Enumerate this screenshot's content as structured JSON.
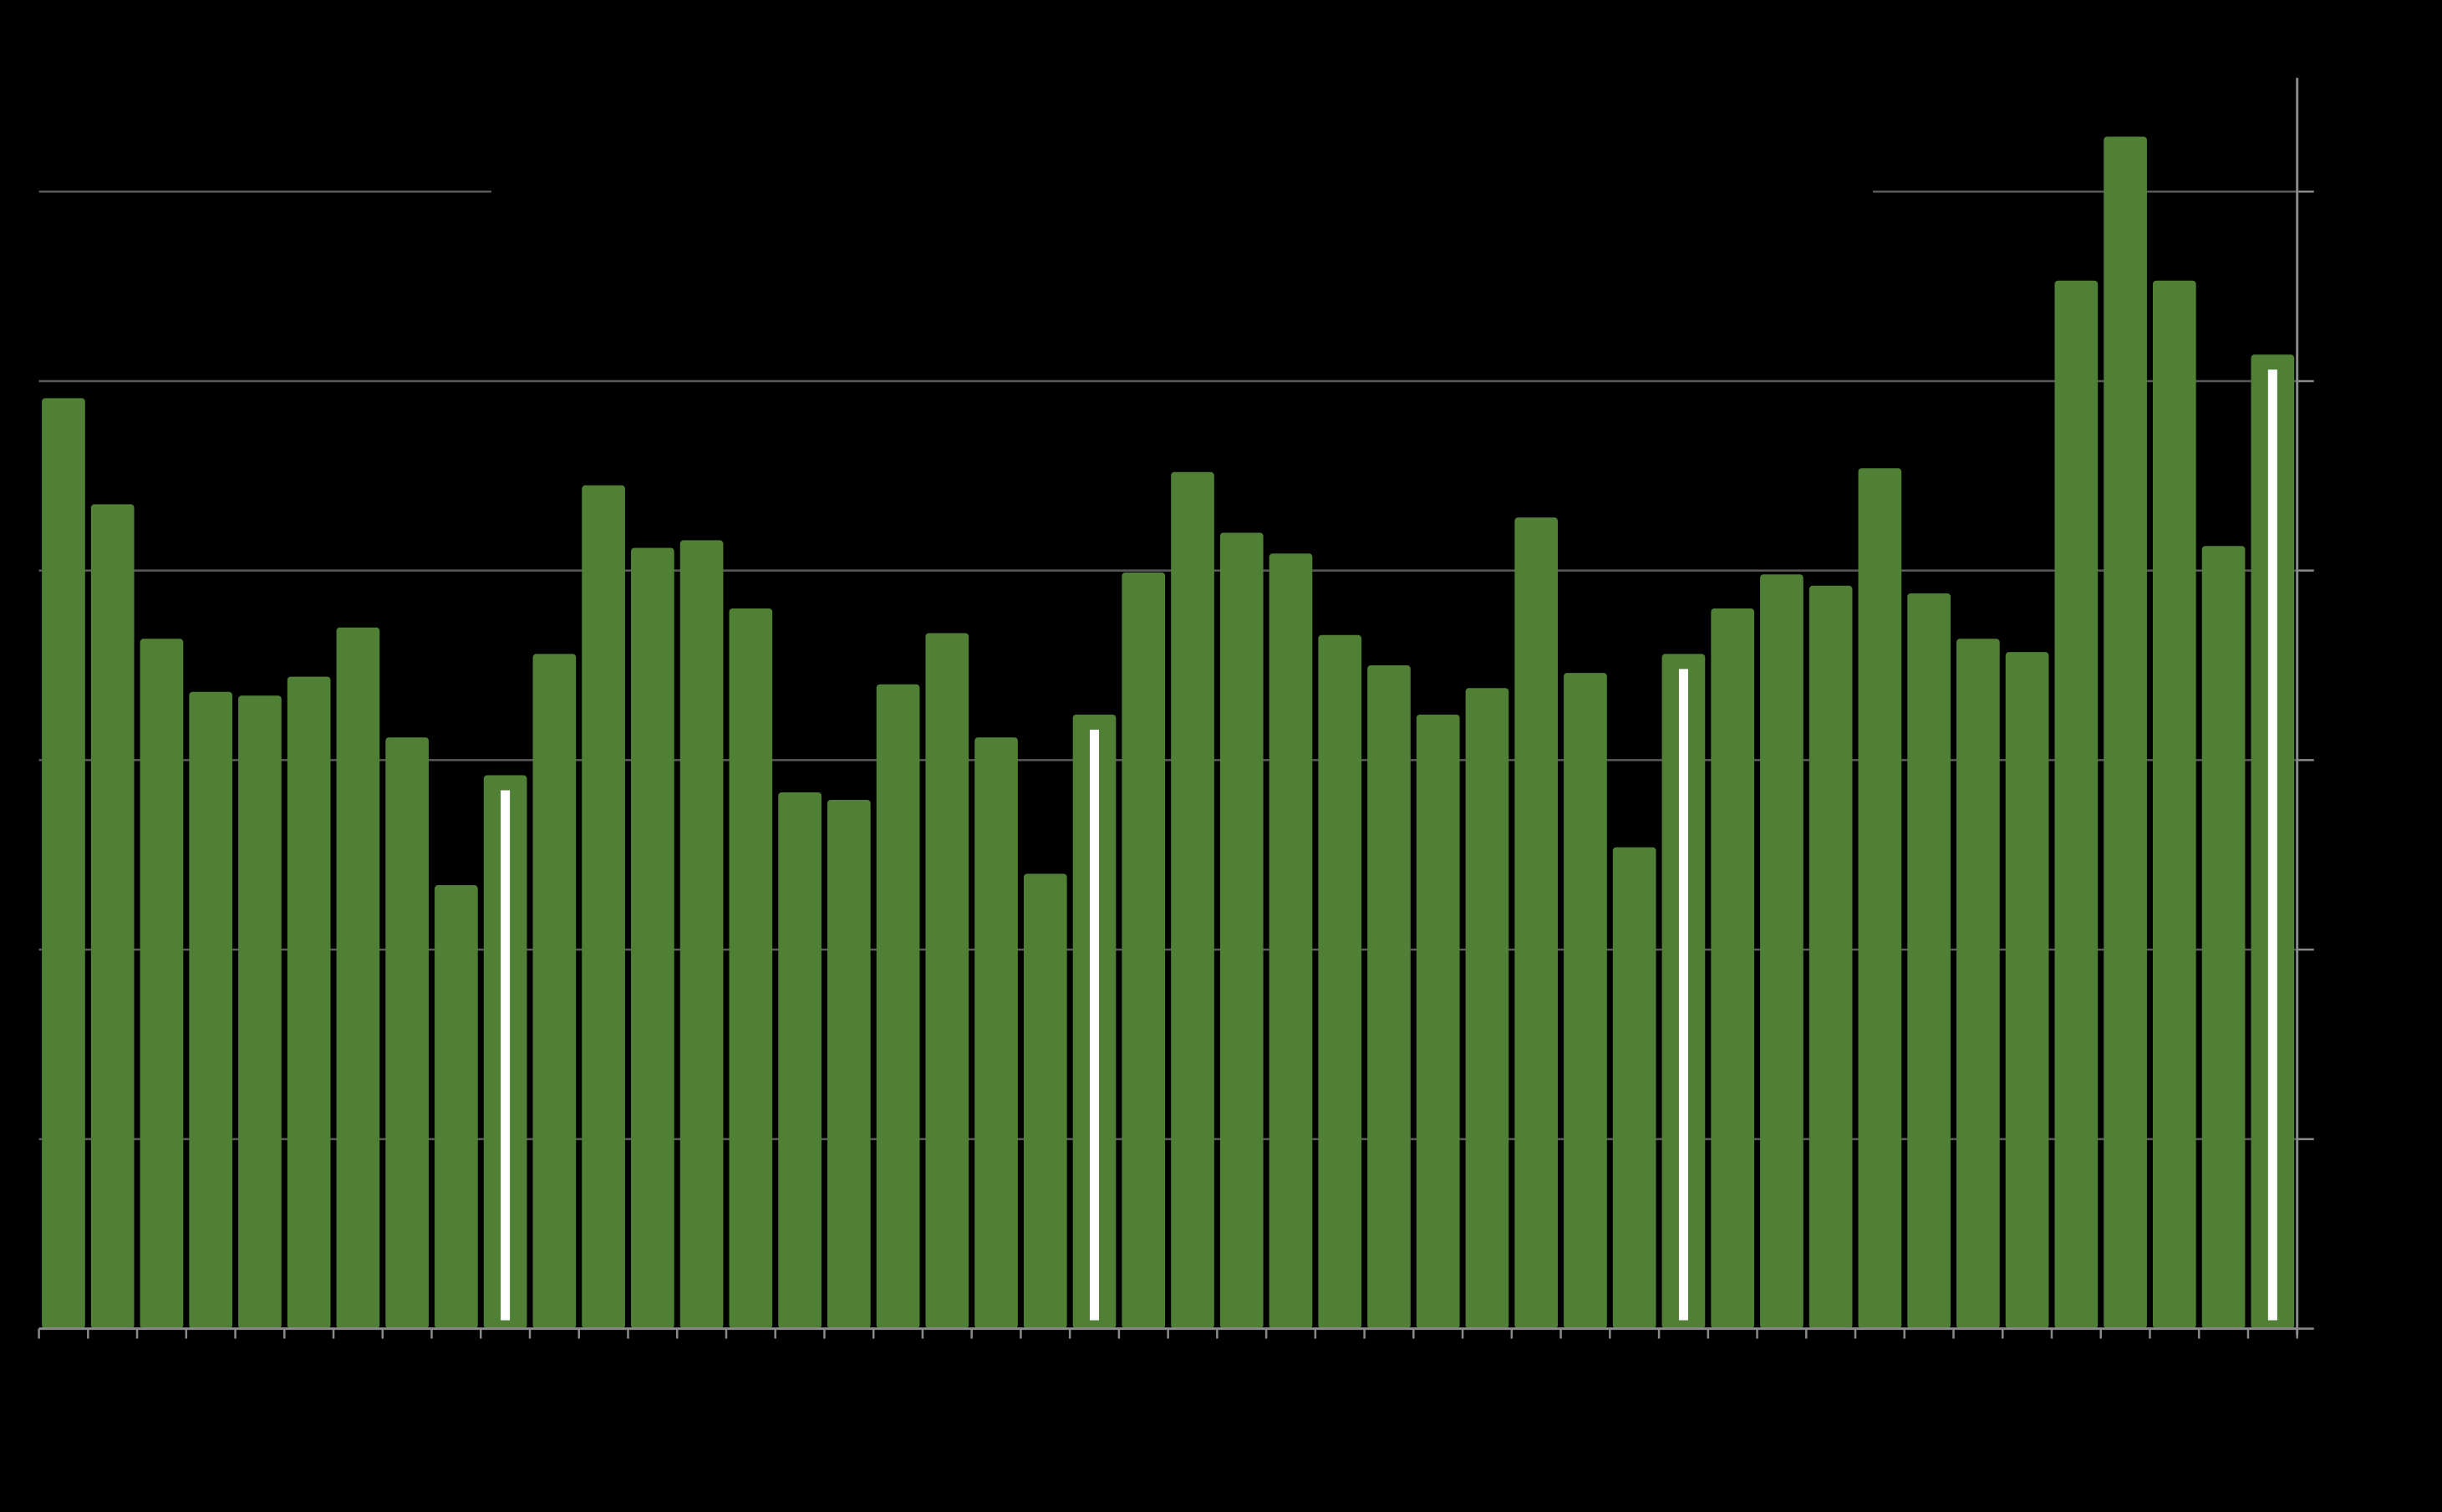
{
  "chart_data": {
    "type": "bar",
    "values": [
      4.91,
      4.35,
      3.64,
      3.36,
      3.34,
      3.44,
      3.7,
      3.12,
      2.34,
      2.92,
      3.56,
      4.45,
      4.12,
      4.16,
      3.8,
      2.83,
      2.79,
      3.4,
      3.67,
      3.12,
      2.4,
      3.24,
      3.99,
      4.52,
      4.2,
      4.09,
      3.66,
      3.5,
      3.24,
      3.38,
      4.28,
      3.46,
      2.54,
      3.56,
      3.8,
      3.98,
      3.92,
      4.54,
      3.88,
      3.64,
      3.57,
      5.53,
      6.29,
      5.53,
      4.13,
      5.14
    ],
    "color": "#507f36",
    "highlight": [
      9,
      21,
      33,
      45
    ],
    "highlight_color": "#ffffff",
    "ylim": [
      0,
      6.6
    ],
    "yticks": [
      0,
      1,
      2,
      3,
      4,
      5,
      6
    ],
    "grid": true,
    "y_axis_side": "right"
  }
}
